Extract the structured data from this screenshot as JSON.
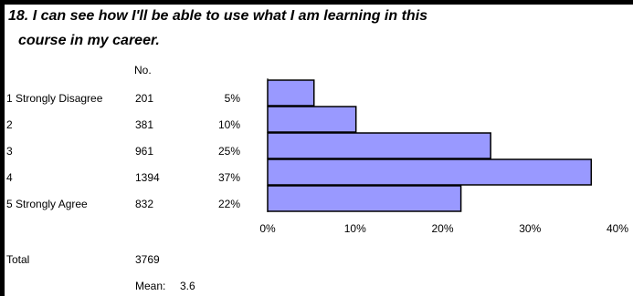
{
  "title_line1": "18. I can see how I'll be able to use what I am learning in this",
  "title_line2": "course in my career.",
  "header_no": "No.",
  "rows": [
    {
      "label": "1 Strongly Disagree",
      "count": "201",
      "pct": "5%"
    },
    {
      "label": "2",
      "count": "381",
      "pct": "10%"
    },
    {
      "label": "3",
      "count": "961",
      "pct": "25%"
    },
    {
      "label": "4",
      "count": "1394",
      "pct": "37%"
    },
    {
      "label": "5 Strongly Agree",
      "count": "832",
      "pct": "22%"
    }
  ],
  "total_label": "Total",
  "total_value": "3769",
  "mean_label": "Mean:",
  "mean_value": "3.6",
  "chart_data": {
    "type": "bar",
    "orientation": "horizontal",
    "categories": [
      "1 Strongly Disagree",
      "2",
      "3",
      "4",
      "5 Strongly Agree"
    ],
    "values": [
      5.3,
      10.1,
      25.5,
      37.0,
      22.1
    ],
    "xlim": [
      0,
      40
    ],
    "xticks": [
      "0%",
      "10%",
      "20%",
      "30%",
      "40%"
    ],
    "bar_color": "#9999ff",
    "grid": false
  }
}
